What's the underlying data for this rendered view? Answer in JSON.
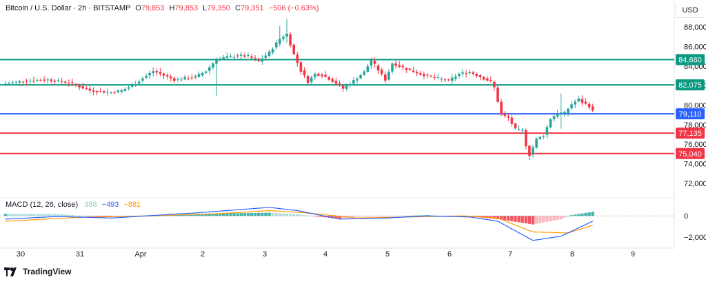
{
  "header": {
    "symbol": "Bitcoin / U.S. Dollar · 2h · BITSTAMP",
    "o_label": "O",
    "o_value": "79,853",
    "h_label": "H",
    "h_value": "79,853",
    "l_label": "L",
    "l_value": "79,350",
    "c_label": "C",
    "c_value": "79,351",
    "change": "−506 (−0.63%)"
  },
  "currency": "USD",
  "brand": "TradingView",
  "macd_header": {
    "label": "MACD (12, 26, close)",
    "hist": "388",
    "macd": "−493",
    "signal": "−881"
  },
  "colors": {
    "up": "#26a69a",
    "down": "#f23645",
    "resistance": "#089981",
    "support": "#f23645",
    "current": "#2962ff",
    "macd_line": "#2962ff",
    "signal_line": "#ff9800",
    "hist_up": "#26a69a",
    "hist_down": "#f23645"
  },
  "chart_data": {
    "type": "candlestick",
    "price_axis": {
      "ticks": [
        72000,
        74000,
        76000,
        78000,
        80000,
        82000,
        84000,
        86000,
        88000
      ],
      "tick_labels": [
        "72,000",
        "74,000",
        "76,000",
        "78,000",
        "80,000",
        "82,000",
        "84,000",
        "86,000",
        "88,000"
      ],
      "range": [
        71000,
        89500
      ]
    },
    "time_axis": {
      "labels": [
        "30",
        "31",
        "Apr",
        "2",
        "3",
        "4",
        "5",
        "6",
        "7",
        "8",
        "9"
      ]
    },
    "levels": [
      {
        "value": 84660,
        "label": "84,660",
        "kind": "resistance"
      },
      {
        "value": 82075,
        "label": "82,075",
        "kind": "resistance"
      },
      {
        "value": 79110,
        "label": "79,110",
        "kind": "current"
      },
      {
        "value": 77135,
        "label": "77,135",
        "kind": "support"
      },
      {
        "value": 75040,
        "label": "75,040",
        "kind": "support"
      }
    ],
    "candle_anchors": [
      [
        0,
        82200
      ],
      [
        6,
        82500
      ],
      [
        12,
        82600
      ],
      [
        18,
        82300
      ],
      [
        24,
        81500
      ],
      [
        30,
        81300
      ],
      [
        33,
        81500
      ],
      [
        36,
        82000
      ],
      [
        42,
        83500
      ],
      [
        48,
        82600
      ],
      [
        54,
        82900
      ],
      [
        57,
        83500
      ],
      [
        60,
        84700
      ],
      [
        66,
        85100
      ],
      [
        69,
        85000
      ],
      [
        72,
        84500
      ],
      [
        75,
        85400
      ],
      [
        78,
        86800
      ],
      [
        80,
        87300
      ],
      [
        82,
        85200
      ],
      [
        84,
        83500
      ],
      [
        86,
        82400
      ],
      [
        88,
        83200
      ],
      [
        90,
        83100
      ],
      [
        93,
        82500
      ],
      [
        96,
        81700
      ],
      [
        99,
        82500
      ],
      [
        102,
        83400
      ],
      [
        104,
        84600
      ],
      [
        106,
        83600
      ],
      [
        108,
        82600
      ],
      [
        110,
        84300
      ],
      [
        112,
        84000
      ],
      [
        114,
        83700
      ],
      [
        118,
        83200
      ],
      [
        122,
        82800
      ],
      [
        126,
        82500
      ],
      [
        129,
        83200
      ],
      [
        132,
        83400
      ],
      [
        135,
        82900
      ],
      [
        138,
        82400
      ],
      [
        139,
        81800
      ],
      [
        140,
        80400
      ],
      [
        141,
        79000
      ],
      [
        143,
        78700
      ],
      [
        145,
        77500
      ],
      [
        147,
        77400
      ],
      [
        148,
        75900
      ],
      [
        149,
        74900
      ],
      [
        151,
        76500
      ],
      [
        153,
        76900
      ],
      [
        155,
        78600
      ],
      [
        157,
        79200
      ],
      [
        159,
        79200
      ],
      [
        161,
        80100
      ],
      [
        163,
        80600
      ],
      [
        164,
        80300
      ],
      [
        166,
        79900
      ],
      [
        167,
        79351
      ]
    ],
    "special_wicks": [
      {
        "i": 60,
        "high": 84900,
        "low": 80900
      },
      {
        "i": 78,
        "high": 88100,
        "low": 86000
      },
      {
        "i": 80,
        "high": 88800,
        "low": 86400
      },
      {
        "i": 149,
        "high": 75300,
        "low": 74400
      },
      {
        "i": 158,
        "high": 81200,
        "low": 77600
      }
    ],
    "macd": {
      "axis_ticks": [
        0,
        -2000
      ],
      "axis_labels": [
        "0",
        "−2,000"
      ],
      "range": [
        -2700,
        1500
      ],
      "macd_anchors": [
        [
          0,
          -300
        ],
        [
          15,
          -50
        ],
        [
          30,
          -200
        ],
        [
          55,
          300
        ],
        [
          75,
          800
        ],
        [
          83,
          500
        ],
        [
          95,
          -300
        ],
        [
          108,
          -200
        ],
        [
          120,
          0
        ],
        [
          132,
          -100
        ],
        [
          140,
          -500
        ],
        [
          150,
          -2300
        ],
        [
          158,
          -1900
        ],
        [
          167,
          -493
        ]
      ],
      "signal_anchors": [
        [
          0,
          -500
        ],
        [
          20,
          -150
        ],
        [
          40,
          0
        ],
        [
          60,
          200
        ],
        [
          75,
          500
        ],
        [
          85,
          300
        ],
        [
          100,
          -200
        ],
        [
          115,
          -100
        ],
        [
          130,
          0
        ],
        [
          140,
          -200
        ],
        [
          150,
          -1500
        ],
        [
          160,
          -1600
        ],
        [
          167,
          -881
        ]
      ]
    }
  }
}
